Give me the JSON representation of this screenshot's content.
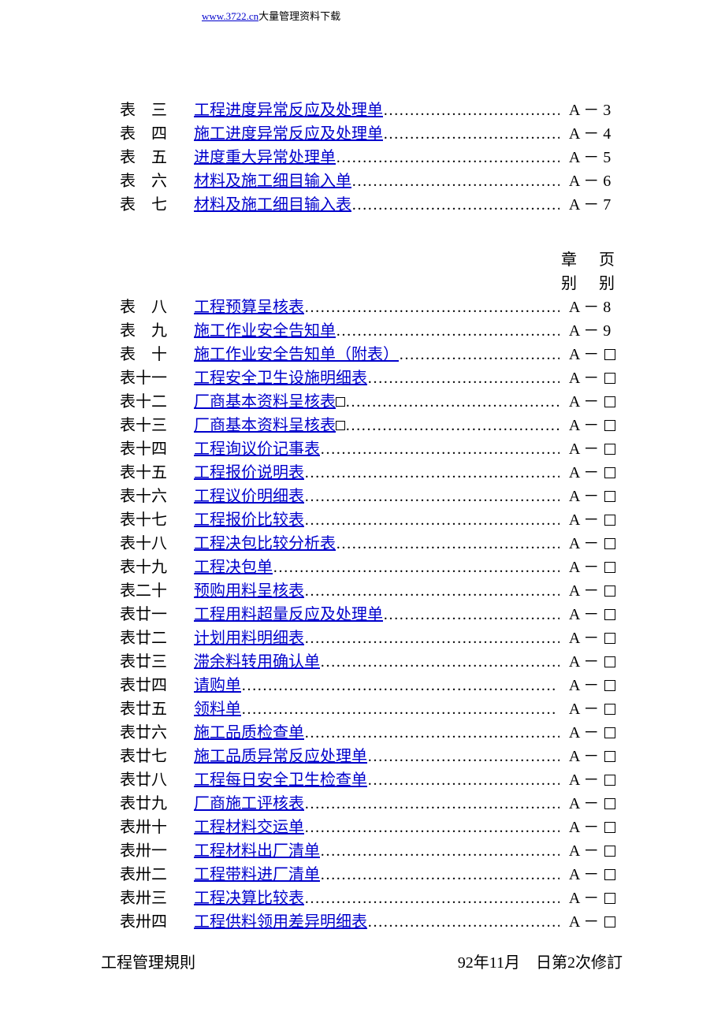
{
  "header": {
    "url": "www.3722.cn",
    "text": "大量管理资料下载"
  },
  "section_header": {
    "col1_top": "章",
    "col1_bot": "别",
    "col2_top": "页",
    "col2_bot": "别"
  },
  "group1": [
    {
      "label": "表　三",
      "title": "工程进度异常反应及处理单",
      "chapter": "A",
      "page": "3",
      "box": false
    },
    {
      "label": "表　四",
      "title": "施工进度异常反应及处理单",
      "chapter": "A",
      "page": "4",
      "box": false
    },
    {
      "label": "表　五",
      "title": "进度重大异常处理单",
      "chapter": "A",
      "page": "5",
      "box": false
    },
    {
      "label": "表　六",
      "title": "材料及施工细目输入单",
      "chapter": "A",
      "page": "6",
      "box": false
    },
    {
      "label": "表　七",
      "title": "材料及施工细目输入表",
      "chapter": "A",
      "page": "7",
      "box": false
    }
  ],
  "group2": [
    {
      "label": "表　八",
      "title": "工程预算呈核表",
      "chapter": "A",
      "page": "8",
      "box": false
    },
    {
      "label": "表　九",
      "title": "施工作业安全告知单",
      "chapter": "A",
      "page": "9",
      "box": false
    },
    {
      "label": "表　十",
      "title": "施工作业安全告知单（附表）",
      "chapter": "A",
      "page": "",
      "box": true
    },
    {
      "label": "表十一",
      "title": "工程安全卫生设施明细表",
      "chapter": "A",
      "page": "",
      "box": true
    },
    {
      "label": "表十二",
      "title": "厂商基本资料呈核表",
      "titlebox": true,
      "chapter": "A",
      "page": "",
      "box": true
    },
    {
      "label": "表十三",
      "title": "厂商基本资料呈核表",
      "titlebox": true,
      "chapter": "A",
      "page": "",
      "box": true
    },
    {
      "label": "表十四",
      "title": "工程询议价记事表",
      "chapter": "A",
      "page": "",
      "box": true
    },
    {
      "label": "表十五",
      "title": "工程报价说明表",
      "chapter": "A",
      "page": "",
      "box": true
    },
    {
      "label": "表十六",
      "title": "工程议价明细表",
      "chapter": "A",
      "page": "",
      "box": true
    },
    {
      "label": "表十七",
      "title": "工程报价比较表",
      "chapter": "A",
      "page": "",
      "box": true
    },
    {
      "label": "表十八",
      "title": "工程决包比较分析表",
      "chapter": "A",
      "page": "",
      "box": true
    },
    {
      "label": "表十九",
      "title": "工程决包单",
      "chapter": "A",
      "page": "",
      "box": true
    },
    {
      "label": "表二十",
      "title": "预购用料呈核表",
      "chapter": "A",
      "page": "",
      "box": true
    },
    {
      "label": "表廿一",
      "title": "工程用料超量反应及处理单",
      "chapter": "A",
      "page": "",
      "box": true
    },
    {
      "label": "表廿二",
      "title": "计划用料明细表",
      "chapter": "A",
      "page": "",
      "box": true
    },
    {
      "label": "表廿三",
      "title": "滞余料转用确认单",
      "chapter": "A",
      "page": "",
      "box": true
    },
    {
      "label": "表廿四",
      "title": "请购单",
      "chapter": "A",
      "page": "",
      "box": true
    },
    {
      "label": "表廿五",
      "title": "领料单",
      "chapter": "A",
      "page": "",
      "box": true
    },
    {
      "label": "表廿六",
      "title": "施工品质检查单",
      "chapter": "A",
      "page": "",
      "box": true
    },
    {
      "label": "表廿七",
      "title": "施工品质异常反应处理单",
      "chapter": "A",
      "page": "",
      "box": true
    },
    {
      "label": "表廿八",
      "title": "工程每日安全卫生检查单",
      "chapter": "A",
      "page": "",
      "box": true
    },
    {
      "label": "表廿九",
      "title": "厂商施工评核表",
      "chapter": "A",
      "page": "",
      "box": true
    },
    {
      "label": "表卅十",
      "title": "工程材料交运单",
      "chapter": "A",
      "page": "",
      "box": true
    },
    {
      "label": "表卅一",
      "title": "工程材料出厂清单",
      "chapter": "A",
      "page": "",
      "box": true
    },
    {
      "label": "表卅二",
      "title": "工程带料进厂清单",
      "chapter": "A",
      "page": "",
      "box": true
    },
    {
      "label": "表卅三",
      "title": "工程决算比较表",
      "chapter": "A",
      "page": "",
      "box": true
    },
    {
      "label": "表卅四",
      "title": "工程供料领用差异明细表",
      "chapter": "A",
      "page": "",
      "box": true
    }
  ],
  "footer": {
    "left": "工程管理規則",
    "right": "92年11月　日第2次修訂"
  },
  "style": {
    "link_color": "#0000cc",
    "text_color": "#000000",
    "bg_color": "#ffffff",
    "body_font_size": 20,
    "dots_char": "…"
  }
}
